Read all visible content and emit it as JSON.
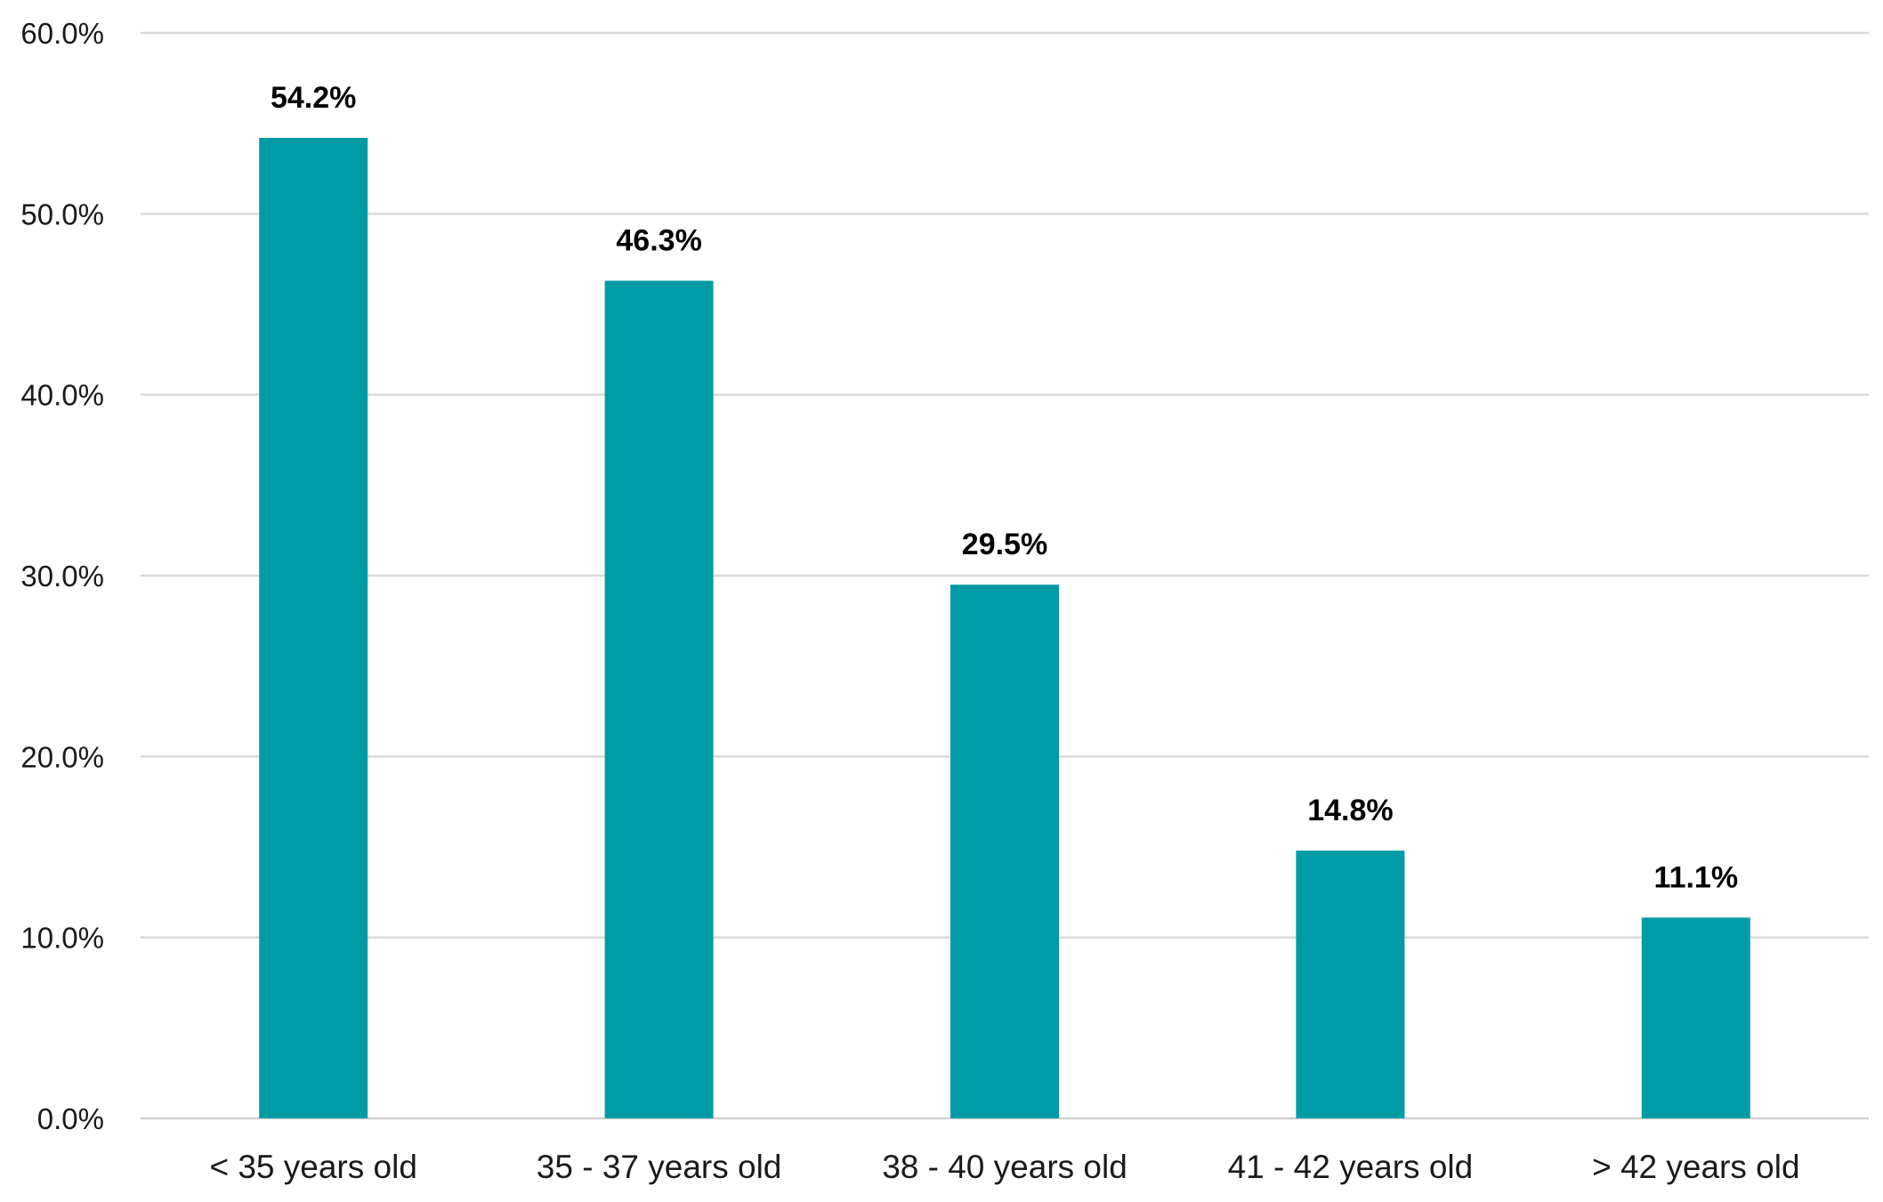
{
  "chart_data": {
    "type": "bar",
    "title": "",
    "xlabel": "",
    "ylabel": "",
    "categories": [
      "< 35 years old",
      "35 - 37 years old",
      "38 - 40 years old",
      "41 - 42 years old",
      "> 42 years old"
    ],
    "values": [
      54.2,
      46.3,
      29.5,
      14.8,
      11.1
    ],
    "data_labels": [
      "54.2%",
      "46.3%",
      "29.5%",
      "14.8%",
      "11.1%"
    ],
    "ylim": [
      0,
      60
    ],
    "yticks": [
      0,
      10,
      20,
      30,
      40,
      50,
      60
    ],
    "ytick_labels": [
      "0.0%",
      "10.0%",
      "20.0%",
      "30.0%",
      "40.0%",
      "50.0%",
      "60.0%"
    ],
    "grid": true,
    "legend": "none",
    "bar_color": "#009ca6"
  }
}
